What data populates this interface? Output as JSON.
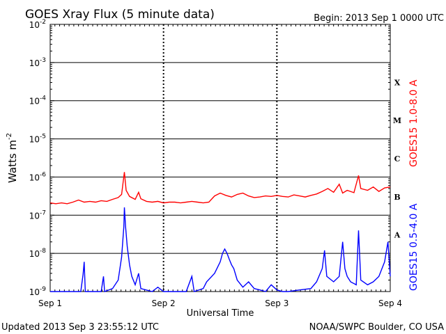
{
  "header": {
    "title": "GOES Xray Flux (5 minute data)",
    "begin": "Begin:  2013 Sep 1 0000 UTC"
  },
  "footer": {
    "updated": "Updated 2013 Sep  3 23:55:12 UTC",
    "source": "NOAA/SWPC Boulder, CO USA"
  },
  "colors": {
    "long": "#ff0000",
    "short": "#0000ff",
    "axis": "#000000"
  },
  "chart_data": {
    "type": "line",
    "title": "GOES Xray Flux (5 minute data)",
    "xlabel": "Universal Time",
    "ylabel_base": "Watts m",
    "ylabel_exp": "-2",
    "x_unit": "days since 2013 Sep 1 0000 UTC",
    "xlim": [
      0,
      3
    ],
    "ylim": [
      1e-09,
      0.01
    ],
    "y_scale": "log",
    "grid": true,
    "x_ticks": [
      {
        "x": 0,
        "label": "Sep 1"
      },
      {
        "x": 1,
        "label": "Sep 2"
      },
      {
        "x": 2,
        "label": "Sep 3"
      },
      {
        "x": 3,
        "label": "Sep 4"
      }
    ],
    "y_ticks": [
      {
        "base": "10",
        "exp": "-9"
      },
      {
        "base": "10",
        "exp": "-8"
      },
      {
        "base": "10",
        "exp": "-7"
      },
      {
        "base": "10",
        "exp": "-6"
      },
      {
        "base": "10",
        "exp": "-5"
      },
      {
        "base": "10",
        "exp": "-4"
      },
      {
        "base": "10",
        "exp": "-3"
      },
      {
        "base": "10",
        "exp": "-2"
      }
    ],
    "flare_classes": [
      "A",
      "B",
      "C",
      "M",
      "X"
    ],
    "series": [
      {
        "name": "GOES15 1.0-8.0 A",
        "color": "#ff0000",
        "points": [
          [
            0,
            2.1e-07
          ],
          [
            0.05,
            2e-07
          ],
          [
            0.1,
            2.1e-07
          ],
          [
            0.15,
            2e-07
          ],
          [
            0.2,
            2.2e-07
          ],
          [
            0.25,
            2.5e-07
          ],
          [
            0.3,
            2.2e-07
          ],
          [
            0.35,
            2.3e-07
          ],
          [
            0.4,
            2.2e-07
          ],
          [
            0.45,
            2.4e-07
          ],
          [
            0.5,
            2.3e-07
          ],
          [
            0.55,
            2.6e-07
          ],
          [
            0.6,
            2.9e-07
          ],
          [
            0.63,
            3.5e-07
          ],
          [
            0.655,
            1.35e-06
          ],
          [
            0.67,
            4.5e-07
          ],
          [
            0.7,
            3.1e-07
          ],
          [
            0.75,
            2.6e-07
          ],
          [
            0.78,
            4e-07
          ],
          [
            0.8,
            2.7e-07
          ],
          [
            0.85,
            2.3e-07
          ],
          [
            0.9,
            2.2e-07
          ],
          [
            0.95,
            2.3e-07
          ],
          [
            1.0,
            2.1e-07
          ],
          [
            1.05,
            2.2e-07
          ],
          [
            1.1,
            2.2e-07
          ],
          [
            1.15,
            2.1e-07
          ],
          [
            1.2,
            2.2e-07
          ],
          [
            1.25,
            2.3e-07
          ],
          [
            1.3,
            2.2e-07
          ],
          [
            1.35,
            2.1e-07
          ],
          [
            1.4,
            2.2e-07
          ],
          [
            1.45,
            3.2e-07
          ],
          [
            1.5,
            3.8e-07
          ],
          [
            1.55,
            3.3e-07
          ],
          [
            1.6,
            3e-07
          ],
          [
            1.65,
            3.5e-07
          ],
          [
            1.7,
            3.8e-07
          ],
          [
            1.75,
            3.2e-07
          ],
          [
            1.8,
            2.9e-07
          ],
          [
            1.85,
            3e-07
          ],
          [
            1.9,
            3.2e-07
          ],
          [
            1.95,
            3.1e-07
          ],
          [
            2.0,
            3.3e-07
          ],
          [
            2.05,
            3.1e-07
          ],
          [
            2.1,
            3e-07
          ],
          [
            2.15,
            3.4e-07
          ],
          [
            2.2,
            3.2e-07
          ],
          [
            2.25,
            3e-07
          ],
          [
            2.3,
            3.3e-07
          ],
          [
            2.35,
            3.6e-07
          ],
          [
            2.4,
            4.2e-07
          ],
          [
            2.45,
            5e-07
          ],
          [
            2.5,
            4e-07
          ],
          [
            2.55,
            6.5e-07
          ],
          [
            2.58,
            3.8e-07
          ],
          [
            2.62,
            4.5e-07
          ],
          [
            2.68,
            3.9e-07
          ],
          [
            2.72,
            1.1e-06
          ],
          [
            2.74,
            5e-07
          ],
          [
            2.8,
            4.5e-07
          ],
          [
            2.85,
            5.5e-07
          ],
          [
            2.9,
            4.2e-07
          ],
          [
            2.95,
            5.2e-07
          ],
          [
            3.0,
            5.5e-07
          ]
        ]
      },
      {
        "name": "GOES15 0.5-4.0 A",
        "color": "#0000ff",
        "points": [
          [
            0,
            1e-09
          ],
          [
            0.25,
            1e-09
          ],
          [
            0.27,
            1e-09
          ],
          [
            0.29,
            2.8e-09
          ],
          [
            0.3,
            6e-09
          ],
          [
            0.31,
            1e-09
          ],
          [
            0.45,
            1e-09
          ],
          [
            0.47,
            2.5e-09
          ],
          [
            0.48,
            1e-09
          ],
          [
            0.55,
            1.2e-09
          ],
          [
            0.6,
            2e-09
          ],
          [
            0.63,
            8e-09
          ],
          [
            0.65,
            5e-08
          ],
          [
            0.655,
            1.6e-07
          ],
          [
            0.665,
            5e-08
          ],
          [
            0.68,
            1.5e-08
          ],
          [
            0.7,
            5e-09
          ],
          [
            0.72,
            2.5e-09
          ],
          [
            0.75,
            1.5e-09
          ],
          [
            0.78,
            3e-09
          ],
          [
            0.8,
            1.2e-09
          ],
          [
            0.9,
            1e-09
          ],
          [
            0.95,
            1.3e-09
          ],
          [
            1.0,
            1e-09
          ],
          [
            1.1,
            1e-09
          ],
          [
            1.2,
            1e-09
          ],
          [
            1.25,
            2.5e-09
          ],
          [
            1.27,
            1e-09
          ],
          [
            1.35,
            1.2e-09
          ],
          [
            1.38,
            1.8e-09
          ],
          [
            1.45,
            3e-09
          ],
          [
            1.5,
            6e-09
          ],
          [
            1.52,
            1e-08
          ],
          [
            1.54,
            1.3e-08
          ],
          [
            1.56,
            1e-08
          ],
          [
            1.58,
            7e-09
          ],
          [
            1.6,
            5e-09
          ],
          [
            1.62,
            4e-09
          ],
          [
            1.65,
            2e-09
          ],
          [
            1.7,
            1.3e-09
          ],
          [
            1.75,
            1.8e-09
          ],
          [
            1.8,
            1.2e-09
          ],
          [
            1.85,
            1.1e-09
          ],
          [
            1.9,
            1e-09
          ],
          [
            1.95,
            1.5e-09
          ],
          [
            2.0,
            1.1e-09
          ],
          [
            2.05,
            1e-09
          ],
          [
            2.1,
            1e-09
          ],
          [
            2.2,
            1.1e-09
          ],
          [
            2.3,
            1.2e-09
          ],
          [
            2.35,
            1.8e-09
          ],
          [
            2.4,
            4e-09
          ],
          [
            2.42,
            1.2e-08
          ],
          [
            2.44,
            2.5e-09
          ],
          [
            2.5,
            1.8e-09
          ],
          [
            2.55,
            2.5e-09
          ],
          [
            2.58,
            2e-08
          ],
          [
            2.6,
            4e-09
          ],
          [
            2.62,
            2.5e-09
          ],
          [
            2.65,
            1.8e-09
          ],
          [
            2.7,
            1.5e-09
          ],
          [
            2.72,
            4e-08
          ],
          [
            2.74,
            2e-09
          ],
          [
            2.8,
            1.5e-09
          ],
          [
            2.85,
            1.8e-09
          ],
          [
            2.9,
            2.5e-09
          ],
          [
            2.95,
            6e-09
          ],
          [
            2.98,
            2e-08
          ],
          [
            3.0,
            2.5e-09
          ]
        ]
      }
    ]
  }
}
